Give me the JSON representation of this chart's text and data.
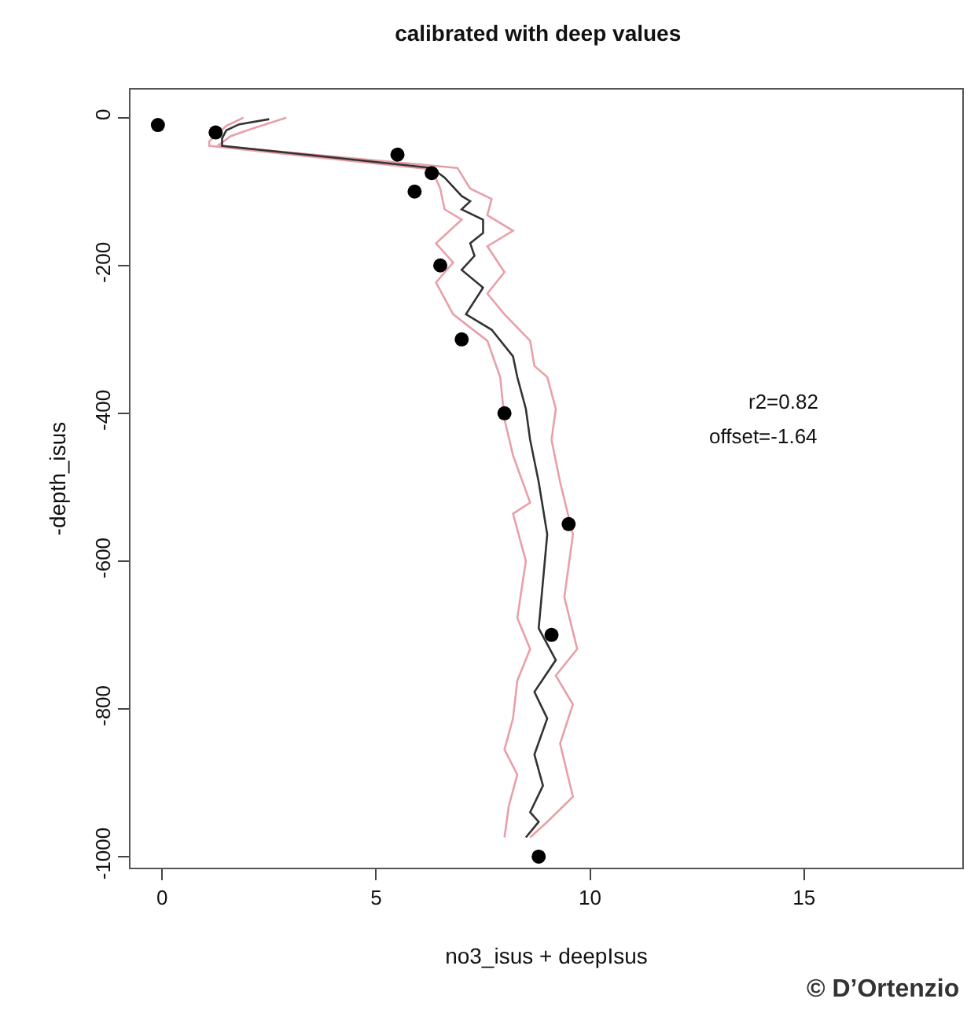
{
  "chart_data": {
    "type": "line",
    "title": "calibrated with deep values",
    "xlabel": "no3_isus + deepIsus",
    "ylabel": "-depth_isus",
    "xlim": [
      -0.74,
      18.7
    ],
    "xticks": [
      0,
      5,
      10,
      15
    ],
    "ylim": [
      -1015,
      38
    ],
    "yticks": [
      0,
      -200,
      -400,
      -600,
      -800,
      -1000
    ],
    "annotations": [
      "r2=0.82",
      "offset=-1.64",
      "© D’Ortenzio"
    ],
    "series": [
      {
        "color": "#e8a0a8",
        "x": [
          2.9,
          2.1,
          1.6,
          1.3,
          6.9,
          7.2,
          7.7,
          7.6,
          8.2,
          7.6,
          8.0,
          7.6,
          8.0,
          8.6,
          8.7,
          9.0,
          9.2,
          9.1,
          9.3,
          9.6,
          9.4,
          9.7,
          9.2,
          9.6,
          9.3,
          9.6,
          9.0,
          8.6
        ],
        "values": [
          0,
          -15,
          -25,
          -38,
          -68,
          -96,
          -110,
          -132,
          -153,
          -174,
          -209,
          -238,
          -266,
          -302,
          -336,
          -351,
          -394,
          -436,
          -493,
          -564,
          -649,
          -719,
          -755,
          -794,
          -847,
          -919,
          -953,
          -974
        ]
      },
      {
        "color": "#e8a0a8",
        "x": [
          1.9,
          1.5,
          1.1,
          1.1,
          6.3,
          6.5,
          6.6,
          7.0,
          6.4,
          6.8,
          6.4,
          6.8,
          7.6,
          7.9,
          8.0,
          8.2,
          8.6,
          8.2,
          8.5,
          8.3,
          8.6,
          8.3,
          8.2,
          8.0,
          8.3,
          8.1,
          8.0
        ],
        "values": [
          0,
          -11,
          -32,
          -38,
          -70,
          -96,
          -124,
          -138,
          -170,
          -196,
          -223,
          -266,
          -302,
          -351,
          -408,
          -457,
          -521,
          -536,
          -600,
          -677,
          -719,
          -762,
          -813,
          -855,
          -889,
          -932,
          -974
        ]
      },
      {
        "color": "#333333",
        "x": [
          2.5,
          1.8,
          1.5,
          1.4,
          1.4,
          6.3,
          6.6,
          7.0,
          7.2,
          7.0,
          7.5,
          7.5,
          7.2,
          7.3,
          7.0,
          7.5,
          7.1,
          7.7,
          8.2,
          8.3,
          8.5,
          8.6,
          8.8,
          9.0,
          8.8,
          9.2,
          8.7,
          9.0,
          8.7,
          8.9,
          8.6,
          8.8,
          8.5
        ],
        "values": [
          -2,
          -9,
          -17,
          -28,
          -38,
          -68,
          -81,
          -106,
          -113,
          -124,
          -138,
          -156,
          -170,
          -187,
          -206,
          -230,
          -266,
          -287,
          -323,
          -351,
          -394,
          -436,
          -493,
          -564,
          -691,
          -734,
          -777,
          -813,
          -862,
          -904,
          -940,
          -953,
          -974
        ]
      },
      {
        "type": "scatter",
        "color": "#000000",
        "marker": "circle",
        "x": [
          -0.1,
          1.25,
          5.5,
          6.3,
          5.9,
          6.5,
          7.0,
          8.0,
          9.5,
          9.1,
          8.8
        ],
        "values": [
          -10,
          -20,
          -50,
          -75,
          -100,
          -200,
          -300,
          -400,
          -550,
          -700,
          -1000
        ]
      }
    ]
  }
}
